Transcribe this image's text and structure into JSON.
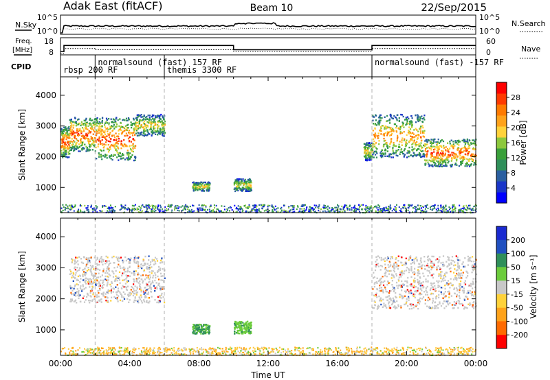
{
  "header": {
    "station": "Adak East (fitACF)",
    "beam": "Beam 10",
    "date": "22/Sep/2015"
  },
  "chart_data": [
    {
      "type": "line",
      "panel": "noise",
      "left_label": "N.Sky",
      "right_label": "N.Search",
      "left_ticks": [
        "10^5",
        "10^0"
      ],
      "right_ticks": [
        "10^5",
        "10^0"
      ]
    },
    {
      "type": "line",
      "panel": "freq-nave",
      "left_label_line1": "Freq.",
      "left_label_line2": "[MHz]",
      "right_label": "Nave",
      "left_ticks": [
        "18",
        "8"
      ],
      "right_ticks": [
        "60",
        "0"
      ],
      "freq_steps": [
        {
          "from": 0.0,
          "to": 0.2,
          "value": 10
        },
        {
          "from": 0.2,
          "to": 10.0,
          "value": 13.5
        },
        {
          "from": 10.0,
          "to": 18.0,
          "value": 11
        },
        {
          "from": 18.0,
          "to": 24.0,
          "value": 13.5
        }
      ],
      "nave_steps": [
        {
          "from": 0.0,
          "to": 0.2,
          "value": 5
        },
        {
          "from": 0.2,
          "to": 2.0,
          "value": 22
        },
        {
          "from": 2.0,
          "to": 10.0,
          "value": 18
        },
        {
          "from": 10.0,
          "to": 18.0,
          "value": 12
        },
        {
          "from": 18.0,
          "to": 24.0,
          "value": 22
        }
      ]
    },
    {
      "type": "table",
      "panel": "cpid",
      "label": "CPID",
      "segments": [
        {
          "start": 0.0,
          "text": "rbsp 200 RF",
          "row": 2
        },
        {
          "start": 2.0,
          "text": "normalsound (fast) 157 RF",
          "row": 1
        },
        {
          "start": 6.0,
          "text": "themis 3300 RF",
          "row": 2
        },
        {
          "start": 18.0,
          "text": "normalsound (fast) -157 RF",
          "row": 1
        }
      ]
    },
    {
      "type": "heatmap",
      "panel": "power",
      "ylabel": "Slant Range [km]",
      "yticks": [
        1000,
        2000,
        3000,
        4000
      ],
      "ylim": [
        180,
        4600
      ],
      "colorbar_label": "Power [dB]",
      "colorbar_ticks": [
        4,
        8,
        12,
        16,
        20,
        24,
        28
      ],
      "colorbar_range": [
        0,
        32
      ],
      "colors": [
        "#0000ff",
        "#1a36c8",
        "#2a5fa0",
        "#2f8f5a",
        "#3aa03a",
        "#8cc83c",
        "#ffd23a",
        "#ffa21a",
        "#ff7a00",
        "#ff3a00",
        "#ff0000"
      ],
      "patches": [
        {
          "t": [
            0.0,
            0.5
          ],
          "r": [
            2000,
            3000
          ],
          "peak": 28
        },
        {
          "t": [
            0.5,
            2.0
          ],
          "r": [
            2200,
            3300
          ],
          "peak": 28
        },
        {
          "t": [
            2.0,
            4.3
          ],
          "r": [
            1900,
            3300
          ],
          "peak": 28
        },
        {
          "t": [
            4.3,
            6.0
          ],
          "r": [
            2700,
            3400
          ],
          "peak": 20
        },
        {
          "t": [
            7.6,
            8.6
          ],
          "r": [
            900,
            1200
          ],
          "peak": 20
        },
        {
          "t": [
            10.0,
            11.0
          ],
          "r": [
            900,
            1300
          ],
          "peak": 20
        },
        {
          "t": [
            17.5,
            18.0
          ],
          "r": [
            1900,
            2500
          ],
          "peak": 20
        },
        {
          "t": [
            18.0,
            21.0
          ],
          "r": [
            2000,
            3400
          ],
          "peak": 24
        },
        {
          "t": [
            21.0,
            24.0
          ],
          "r": [
            1700,
            2600
          ],
          "peak": 28
        }
      ]
    },
    {
      "type": "heatmap",
      "panel": "velocity",
      "ylabel": "Slant Range [km]",
      "yticks": [
        1000,
        2000,
        3000,
        4000
      ],
      "ylim": [
        180,
        4600
      ],
      "xlabel": "Time UT",
      "xticks": [
        "00:00",
        "04:00",
        "08:00",
        "12:00",
        "16:00",
        "20:00",
        "00:00"
      ],
      "xlim": [
        0,
        24
      ],
      "colorbar_label": "Velocity [m s⁻¹]",
      "colorbar_ticks": [
        "200",
        "100",
        "50",
        "15",
        "-15",
        "-50",
        "-100",
        "-200"
      ],
      "colors": [
        "#1a2ad0",
        "#2050c0",
        "#2f8f5a",
        "#6ccc3c",
        "#c8c8c8",
        "#ffd23a",
        "#ffa21a",
        "#ff6a00",
        "#ff0000"
      ],
      "patches": [
        {
          "t": [
            0.5,
            6.0
          ],
          "r": [
            1900,
            3400
          ],
          "vel": 0
        },
        {
          "t": [
            7.6,
            8.6
          ],
          "r": [
            900,
            1200
          ],
          "vel": 60
        },
        {
          "t": [
            10.0,
            11.0
          ],
          "r": [
            900,
            1300
          ],
          "vel": 40
        },
        {
          "t": [
            18.0,
            24.0
          ],
          "r": [
            1700,
            3400
          ],
          "vel": 0
        }
      ]
    }
  ]
}
